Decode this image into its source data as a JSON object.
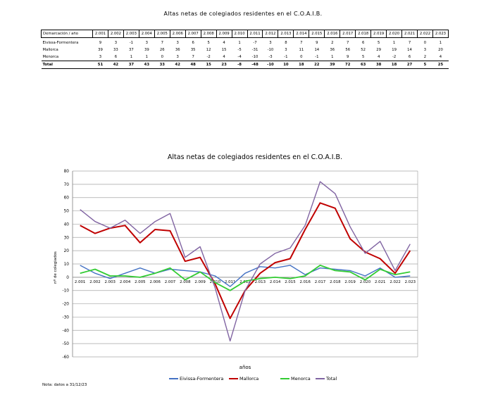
{
  "page": {
    "title": "Altas netas de colegiados residentes en el C.O.A.I.B.",
    "footnote": "Nota: datos a 31/12/23"
  },
  "table": {
    "corner": "Demarcación / año",
    "years": [
      "2.001",
      "2.002",
      "2.003",
      "2.004",
      "2.005",
      "2.006",
      "2.007",
      "2.008",
      "2.009",
      "2.010",
      "2.011",
      "2.012",
      "2.013",
      "2.014",
      "2.015",
      "2.016",
      "2.017",
      "2.018",
      "2.019",
      "2.020",
      "2.021",
      "2.022",
      "2.023"
    ],
    "rows": [
      {
        "label": "Eivissa-Formentera",
        "values": [
          "9",
          "3",
          "-1",
          "3",
          "7",
          "3",
          "6",
          "5",
          "4",
          "1",
          "-7",
          "3",
          "8",
          "7",
          "9",
          "2",
          "7",
          "6",
          "5",
          "1",
          "7",
          "0",
          "1"
        ]
      },
      {
        "label": "Mallorca",
        "values": [
          "39",
          "33",
          "37",
          "39",
          "26",
          "36",
          "35",
          "12",
          "15",
          "-5",
          "-31",
          "-10",
          "3",
          "11",
          "14",
          "36",
          "56",
          "52",
          "29",
          "19",
          "14",
          "3",
          "20"
        ]
      },
      {
        "label": "Menorca",
        "values": [
          "3",
          "6",
          "1",
          "1",
          "0",
          "3",
          "7",
          "-2",
          "4",
          "-4",
          "-10",
          "-3",
          "-1",
          "0",
          "-1",
          "1",
          "9",
          "5",
          "4",
          "-2",
          "6",
          "2",
          "4"
        ]
      }
    ],
    "total": {
      "label": "Total",
      "values": [
        "51",
        "42",
        "37",
        "43",
        "33",
        "42",
        "48",
        "15",
        "23",
        "-8",
        "-48",
        "-10",
        "10",
        "18",
        "22",
        "39",
        "72",
        "63",
        "38",
        "18",
        "27",
        "5",
        "25"
      ]
    }
  },
  "chart_data": {
    "type": "line",
    "title": "Altas netas de colegiados residentes en el C.O.A.I.B.",
    "xlabel": "años",
    "ylabel": "nº de colegiados",
    "x": [
      "2.001",
      "2.002",
      "2.003",
      "2.004",
      "2.005",
      "2.006",
      "2.007",
      "2.008",
      "2.009",
      "2.010",
      "2.011",
      "2.012",
      "2.013",
      "2.014",
      "2.015",
      "2.016",
      "2.017",
      "2.018",
      "2.019",
      "2.020",
      "2.021",
      "2.022",
      "2.023"
    ],
    "ylim": [
      -60,
      80
    ],
    "yticks": [
      80,
      70,
      60,
      50,
      40,
      30,
      20,
      10,
      0,
      -10,
      -20,
      -30,
      -40,
      -50,
      -60
    ],
    "grid": true,
    "legend": "bottom",
    "series": [
      {
        "name": "Eivissa-Formentera",
        "color": "#4472c4",
        "values": [
          9,
          3,
          -1,
          3,
          7,
          3,
          6,
          5,
          4,
          1,
          -7,
          3,
          8,
          7,
          9,
          2,
          7,
          6,
          5,
          1,
          7,
          0,
          1
        ]
      },
      {
        "name": "Mallorca",
        "color": "#c00000",
        "values": [
          39,
          33,
          37,
          39,
          26,
          36,
          35,
          12,
          15,
          -5,
          -31,
          -10,
          3,
          11,
          14,
          36,
          56,
          52,
          29,
          19,
          14,
          3,
          20
        ]
      },
      {
        "name": "Menorca",
        "color": "#33cc33",
        "values": [
          3,
          6,
          1,
          1,
          0,
          3,
          7,
          -2,
          4,
          -4,
          -10,
          -3,
          -1,
          0,
          -1,
          1,
          9,
          5,
          4,
          -2,
          6,
          2,
          4
        ]
      },
      {
        "name": "Total",
        "color": "#8064a2",
        "values": [
          51,
          42,
          37,
          43,
          33,
          42,
          48,
          15,
          23,
          -8,
          -48,
          -10,
          10,
          18,
          22,
          39,
          72,
          63,
          38,
          18,
          27,
          5,
          25
        ]
      }
    ]
  }
}
